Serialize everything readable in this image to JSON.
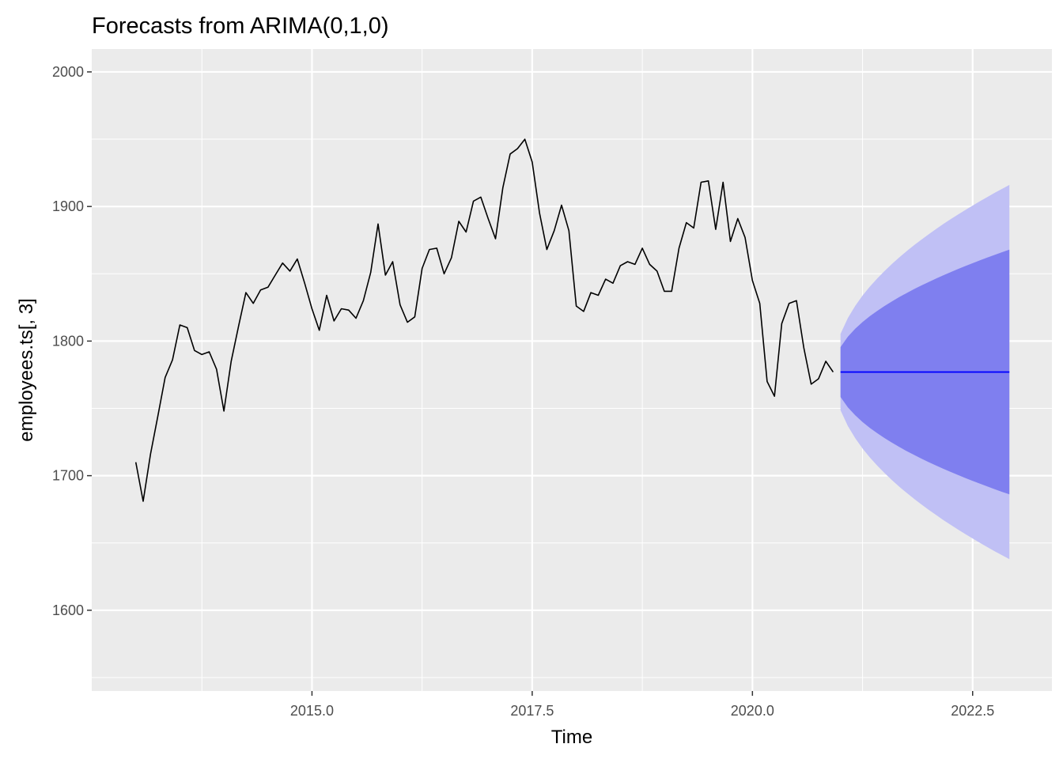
{
  "chart_data": {
    "type": "line",
    "title": "Forecasts from ARIMA(0,1,0)",
    "xlabel": "Time",
    "ylabel": "employees.ts[, 3]",
    "xlim": [
      2012.5,
      2023.4
    ],
    "ylim": [
      1540,
      2017
    ],
    "x_ticks": [
      2015.0,
      2017.5,
      2020.0,
      2022.5
    ],
    "x_tick_labels": [
      "2015.0",
      "2017.5",
      "2020.0",
      "2022.5"
    ],
    "y_ticks": [
      1600,
      1700,
      1800,
      1900,
      2000
    ],
    "y_tick_labels": [
      "1600",
      "1700",
      "1800",
      "1900",
      "2000"
    ],
    "grid": true,
    "series": [
      {
        "kind": "observed",
        "color": "#000000",
        "start": 2013.0,
        "frequency": 12,
        "values": [
          1710,
          1681,
          1716,
          1744,
          1773,
          1786,
          1812,
          1810,
          1793,
          1790,
          1792,
          1779,
          1748,
          1785,
          1811,
          1836,
          1828,
          1838,
          1840,
          1849,
          1858,
          1852,
          1861,
          1843,
          1824,
          1808,
          1834,
          1815,
          1824,
          1823,
          1817,
          1830,
          1851,
          1887,
          1849,
          1859,
          1827,
          1814,
          1818,
          1854,
          1868,
          1869,
          1850,
          1862,
          1889,
          1881,
          1904,
          1907,
          1891,
          1876,
          1914,
          1939,
          1943,
          1950,
          1933,
          1895,
          1868,
          1882,
          1901,
          1882,
          1826,
          1822,
          1836,
          1834,
          1846,
          1843,
          1856,
          1859,
          1857,
          1869,
          1857,
          1852,
          1837,
          1837,
          1869,
          1888,
          1884,
          1918,
          1919,
          1883,
          1918,
          1874,
          1891,
          1877,
          1845,
          1828,
          1770,
          1759,
          1813,
          1828,
          1830,
          1795,
          1768,
          1772,
          1785,
          1777
        ]
      },
      {
        "kind": "forecast",
        "color": "#0000ff",
        "start": 2021.0,
        "end": 2022.917,
        "point": 1777,
        "se_per_step": 14.48,
        "band_80_color": "#7f7fef",
        "band_95_color": "#c0c0f5"
      }
    ]
  }
}
